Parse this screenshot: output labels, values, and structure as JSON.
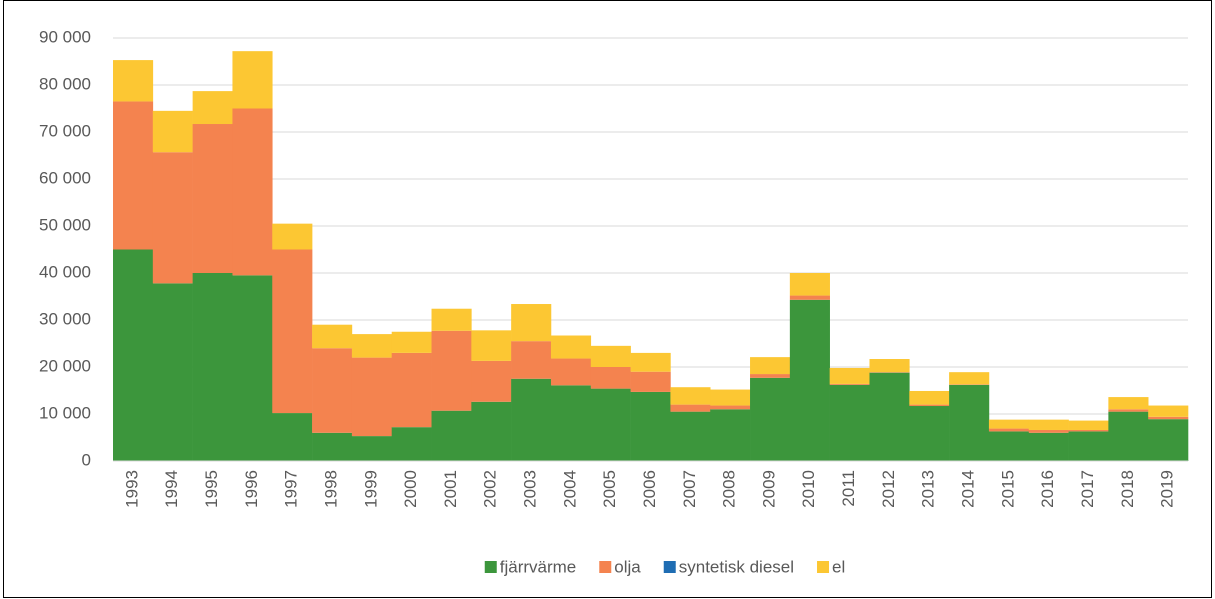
{
  "chart_data": {
    "type": "stacked_bar",
    "categories": [
      "1993",
      "1994",
      "1995",
      "1996",
      "1997",
      "1998",
      "1999",
      "2000",
      "2001",
      "2002",
      "2003",
      "2004",
      "2005",
      "2006",
      "2007",
      "2008",
      "2009",
      "2010",
      "2011",
      "2012",
      "2013",
      "2014",
      "2015",
      "2016",
      "2017",
      "2018",
      "2019"
    ],
    "series": [
      {
        "name": "fjärrvärme",
        "color": "#3c963c",
        "values": [
          45000,
          37800,
          40000,
          39500,
          10200,
          6000,
          5300,
          7200,
          10700,
          12600,
          17500,
          16100,
          15400,
          14700,
          10500,
          11000,
          17700,
          34300,
          16200,
          18800,
          11700,
          16200,
          6300,
          6000,
          6300,
          10500,
          8900
        ]
      },
      {
        "name": "olja",
        "color": "#f4834f",
        "values": [
          31500,
          27900,
          31700,
          35500,
          34800,
          18000,
          16700,
          15800,
          17000,
          8700,
          8000,
          5700,
          4600,
          4300,
          1500,
          800,
          800,
          900,
          200,
          100,
          300,
          100,
          600,
          600,
          300,
          500,
          500
        ]
      },
      {
        "name": "syntetisk diesel",
        "color": "#1f6db3",
        "values": [
          0,
          0,
          0,
          0,
          0,
          0,
          0,
          0,
          0,
          0,
          0,
          0,
          0,
          0,
          0,
          0,
          0,
          0,
          0,
          0,
          0,
          0,
          0,
          0,
          0,
          0,
          0
        ]
      },
      {
        "name": "el",
        "color": "#fcc733",
        "values": [
          8800,
          8800,
          7000,
          12200,
          5500,
          5000,
          5000,
          4500,
          4700,
          6500,
          7900,
          4900,
          4500,
          4000,
          3700,
          3400,
          3600,
          4800,
          3400,
          2800,
          2900,
          2600,
          1900,
          2200,
          2000,
          2600,
          2400
        ]
      }
    ],
    "ylim": [
      0,
      90000
    ],
    "yticks": [
      0,
      {
        "value": 10000,
        "label": "10 000"
      },
      {
        "value": 20000,
        "label": "20 000"
      },
      {
        "value": 30000,
        "label": "30 000"
      },
      {
        "value": 40000,
        "label": "40 000"
      },
      {
        "value": 50000,
        "label": "50 000"
      },
      {
        "value": 60000,
        "label": "60 000"
      },
      {
        "value": 70000,
        "label": "70 000"
      },
      {
        "value": 80000,
        "label": "80 000"
      },
      {
        "value": 90000,
        "label": "90 000"
      }
    ],
    "grid": true,
    "legend": "bottom"
  }
}
